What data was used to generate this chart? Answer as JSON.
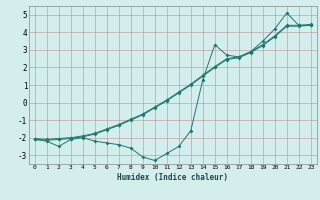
{
  "title": "",
  "xlabel": "Humidex (Indice chaleur)",
  "ylabel": "",
  "background_color": "#d4eeee",
  "grid_color": "#c8a0a0",
  "line_color": "#1a7a6e",
  "x": [
    0,
    1,
    2,
    3,
    4,
    5,
    6,
    7,
    8,
    9,
    10,
    11,
    12,
    13,
    14,
    15,
    16,
    17,
    18,
    19,
    20,
    21,
    22,
    23
  ],
  "y_curve": [
    -2.1,
    -2.2,
    -2.5,
    -2.1,
    -2.0,
    -2.2,
    -2.3,
    -2.4,
    -2.6,
    -3.1,
    -3.3,
    -2.9,
    -2.5,
    -1.6,
    1.3,
    3.3,
    2.7,
    2.6,
    2.9,
    3.5,
    4.2,
    5.1,
    4.4,
    4.4
  ],
  "y_line1": [
    -2.1,
    -2.15,
    -2.1,
    -2.05,
    -1.95,
    -1.8,
    -1.55,
    -1.3,
    -1.0,
    -0.7,
    -0.3,
    0.1,
    0.55,
    1.0,
    1.5,
    2.0,
    2.45,
    2.55,
    2.85,
    3.25,
    3.75,
    4.35,
    4.35,
    4.4
  ],
  "y_line2": [
    -2.05,
    -2.1,
    -2.05,
    -2.0,
    -1.9,
    -1.75,
    -1.5,
    -1.25,
    -0.95,
    -0.65,
    -0.25,
    0.15,
    0.6,
    1.05,
    1.55,
    2.05,
    2.5,
    2.6,
    2.9,
    3.3,
    3.8,
    4.4,
    4.4,
    4.45
  ],
  "ylim": [
    -3.5,
    5.5
  ],
  "xlim": [
    -0.5,
    23.5
  ],
  "yticks": [
    -3,
    -2,
    -1,
    0,
    1,
    2,
    3,
    4,
    5
  ],
  "xtick_labels": [
    "0",
    "1",
    "2",
    "3",
    "4",
    "5",
    "6",
    "7",
    "8",
    "9",
    "10",
    "11",
    "12",
    "13",
    "14",
    "15",
    "16",
    "17",
    "18",
    "19",
    "20",
    "21",
    "22",
    "23"
  ]
}
